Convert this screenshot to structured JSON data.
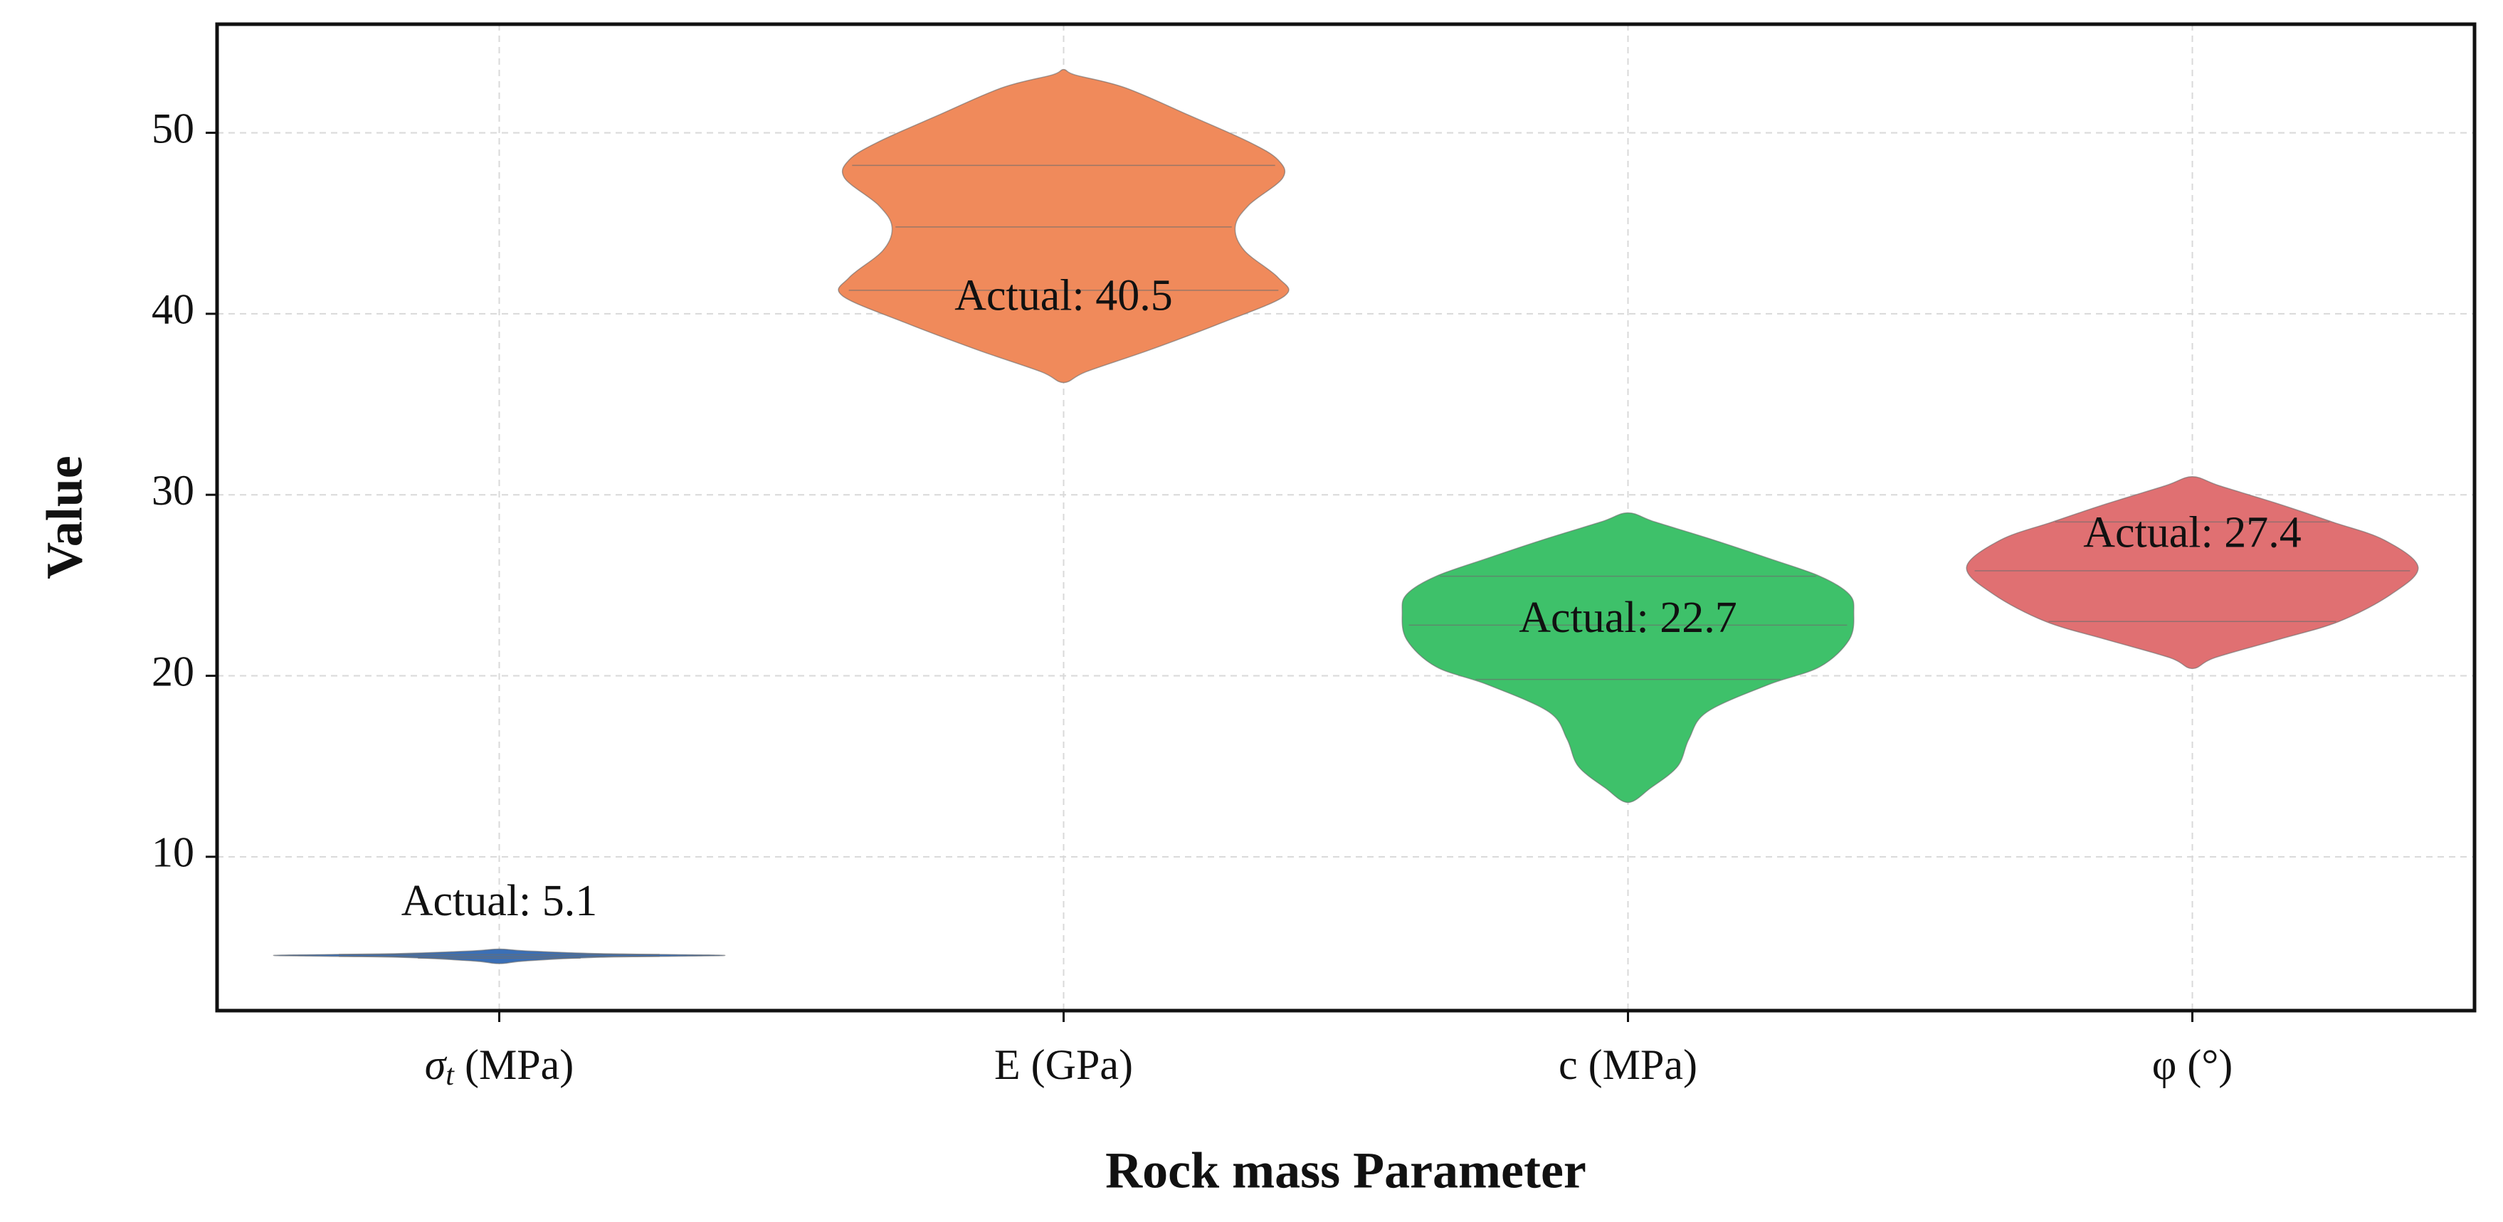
{
  "chart_data": {
    "type": "violin",
    "title": "",
    "xlabel": "Rock mass Parameter",
    "ylabel": "Value",
    "ylim": [
      1.5,
      56
    ],
    "yticks": [
      10,
      20,
      30,
      40,
      50
    ],
    "ytick_labels": [
      "10",
      "20",
      "30",
      "40",
      "50"
    ],
    "grid": true,
    "categories": [
      "σt (MPa)",
      "E (GPa)",
      "c (MPa)",
      "φ (°)"
    ],
    "series": [
      {
        "name": "σt (MPa)",
        "color": "#3a6fb6",
        "min": 4.1,
        "max": 4.9,
        "median": 4.5,
        "q1": 4.4,
        "q3": 4.6,
        "actual": 5.1,
        "annotation": "Actual: 5.1",
        "profile": [
          [
            4.1,
            0.0
          ],
          [
            4.25,
            0.12
          ],
          [
            4.45,
            0.45
          ],
          [
            4.55,
            1.0
          ],
          [
            4.65,
            0.45
          ],
          [
            4.8,
            0.12
          ],
          [
            4.9,
            0.0
          ]
        ]
      },
      {
        "name": "E (GPa)",
        "color": "#f08a5b",
        "min": 36.2,
        "max": 53.5,
        "median": 44.8,
        "q1": 41.3,
        "q3": 48.2,
        "actual": 40.5,
        "annotation": "Actual: 40.5",
        "profile": [
          [
            36.2,
            0.0
          ],
          [
            36.8,
            0.1
          ],
          [
            38.0,
            0.38
          ],
          [
            39.5,
            0.7
          ],
          [
            41.0,
            0.98
          ],
          [
            42.0,
            0.95
          ],
          [
            43.5,
            0.8
          ],
          [
            44.8,
            0.76
          ],
          [
            46.0,
            0.82
          ],
          [
            47.5,
            0.97
          ],
          [
            48.5,
            0.95
          ],
          [
            49.5,
            0.82
          ],
          [
            51.0,
            0.55
          ],
          [
            52.5,
            0.27
          ],
          [
            53.2,
            0.05
          ],
          [
            53.5,
            0.0
          ]
        ]
      },
      {
        "name": "c (MPa)",
        "color": "#3ec16a",
        "min": 13.0,
        "max": 29.0,
        "median": 22.8,
        "q1": 19.8,
        "q3": 25.5,
        "actual": 22.7,
        "annotation": "Actual: 22.7",
        "profile": [
          [
            13.0,
            0.0
          ],
          [
            13.8,
            0.1
          ],
          [
            15.0,
            0.22
          ],
          [
            16.5,
            0.27
          ],
          [
            18.0,
            0.35
          ],
          [
            19.5,
            0.62
          ],
          [
            20.5,
            0.85
          ],
          [
            22.0,
            0.98
          ],
          [
            23.5,
            1.0
          ],
          [
            24.5,
            0.98
          ],
          [
            25.5,
            0.85
          ],
          [
            26.5,
            0.62
          ],
          [
            27.5,
            0.38
          ],
          [
            28.5,
            0.12
          ],
          [
            29.0,
            0.0
          ]
        ]
      },
      {
        "name": "φ (°)",
        "color": "#e07072",
        "min": 20.4,
        "max": 31.0,
        "median": 25.8,
        "q1": 23.0,
        "q3": 28.5,
        "actual": 27.4,
        "annotation": "Actual: 27.4",
        "profile": [
          [
            20.4,
            0.0
          ],
          [
            21.0,
            0.1
          ],
          [
            22.0,
            0.38
          ],
          [
            23.0,
            0.65
          ],
          [
            24.5,
            0.88
          ],
          [
            26.0,
            1.0
          ],
          [
            27.5,
            0.85
          ],
          [
            28.5,
            0.62
          ],
          [
            29.5,
            0.38
          ],
          [
            30.5,
            0.12
          ],
          [
            31.0,
            0.0
          ]
        ]
      }
    ]
  }
}
